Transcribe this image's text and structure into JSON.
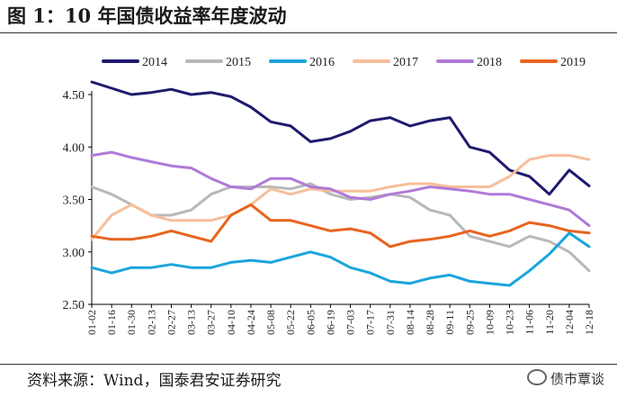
{
  "figure": {
    "title": "图 1：10 年国债收益率年度波动",
    "source": "资料来源：Wind，国泰君安证券研究",
    "brand": "债市覃谈",
    "brand_icon": "wechat-icon"
  },
  "chart_data": {
    "type": "line",
    "title": "",
    "xlabel": "",
    "ylabel": "",
    "ylim": [
      2.5,
      4.5
    ],
    "yticks": [
      "2.50",
      "3.00",
      "3.50",
      "4.00",
      "4.50"
    ],
    "x_tick_labels": [
      "01-02",
      "01-16",
      "01-30",
      "02-13",
      "02-27",
      "03-13",
      "03-27",
      "04-10",
      "04-24",
      "05-08",
      "05-22",
      "06-05",
      "06-19",
      "07-03",
      "07-17",
      "07-31",
      "08-14",
      "08-28",
      "09-11",
      "09-25",
      "10-09",
      "10-23",
      "11-06",
      "11-20",
      "12-04",
      "12-18"
    ],
    "x": [
      0,
      2,
      4,
      6,
      8,
      10,
      12,
      14,
      16,
      18,
      20,
      22,
      24,
      26,
      28,
      30,
      32,
      34,
      36,
      38,
      40,
      42,
      44,
      46,
      48,
      50
    ],
    "legend_position": "top",
    "grid": false,
    "series": [
      {
        "name": "2014",
        "color": "#1f1a6e",
        "values": [
          4.62,
          4.56,
          4.5,
          4.52,
          4.55,
          4.5,
          4.52,
          4.48,
          4.38,
          4.24,
          4.2,
          4.05,
          4.08,
          4.15,
          4.25,
          4.28,
          4.2,
          4.25,
          4.28,
          4.0,
          3.95,
          3.78,
          3.72,
          3.55,
          3.78,
          3.63
        ]
      },
      {
        "name": "2015",
        "color": "#b8b8b8",
        "values": [
          3.62,
          3.55,
          3.45,
          3.35,
          3.35,
          3.4,
          3.55,
          3.62,
          3.62,
          3.62,
          3.6,
          3.65,
          3.55,
          3.5,
          3.52,
          3.55,
          3.52,
          3.4,
          3.35,
          3.15,
          3.1,
          3.05,
          3.15,
          3.1,
          3.0,
          2.82
        ]
      },
      {
        "name": "2016",
        "color": "#1ba5dc",
        "values": [
          2.85,
          2.8,
          2.85,
          2.85,
          2.88,
          2.85,
          2.85,
          2.9,
          2.92,
          2.9,
          2.95,
          3.0,
          2.95,
          2.85,
          2.8,
          2.72,
          2.7,
          2.75,
          2.78,
          2.72,
          2.7,
          2.68,
          2.82,
          2.98,
          3.18,
          3.05
        ]
      },
      {
        "name": "2017",
        "color": "#f6bf9a",
        "values": [
          3.12,
          3.35,
          3.45,
          3.35,
          3.3,
          3.3,
          3.3,
          3.35,
          3.45,
          3.6,
          3.55,
          3.6,
          3.58,
          3.58,
          3.58,
          3.62,
          3.65,
          3.65,
          3.62,
          3.62,
          3.62,
          3.72,
          3.88,
          3.92,
          3.92,
          3.88
        ]
      },
      {
        "name": "2018",
        "color": "#b07ad8",
        "values": [
          3.92,
          3.95,
          3.9,
          3.86,
          3.82,
          3.8,
          3.7,
          3.62,
          3.6,
          3.7,
          3.7,
          3.62,
          3.6,
          3.52,
          3.5,
          3.55,
          3.58,
          3.62,
          3.6,
          3.58,
          3.55,
          3.55,
          3.5,
          3.45,
          3.4,
          3.25
        ]
      },
      {
        "name": "2019",
        "color": "#e8641e",
        "values": [
          3.15,
          3.12,
          3.12,
          3.15,
          3.2,
          3.15,
          3.1,
          3.35,
          3.45,
          3.3,
          3.3,
          3.25,
          3.2,
          3.22,
          3.18,
          3.05,
          3.1,
          3.12,
          3.15,
          3.2,
          3.15,
          3.2,
          3.28,
          3.25,
          3.2,
          3.18
        ]
      }
    ]
  }
}
